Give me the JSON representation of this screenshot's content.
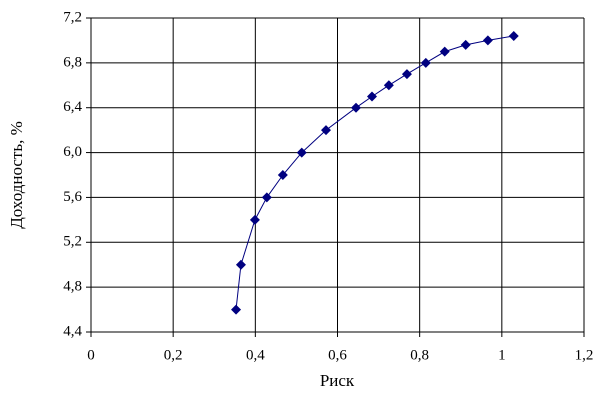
{
  "chart_data": {
    "type": "line",
    "xlabel": "Риск",
    "ylabel": "Доходность, %",
    "x": [
      0.353,
      0.365,
      0.399,
      0.428,
      0.467,
      0.513,
      0.572,
      0.645,
      0.684,
      0.725,
      0.769,
      0.815,
      0.861,
      0.912,
      0.966,
      1.029
    ],
    "values": [
      4.6,
      5.0,
      5.4,
      5.6,
      5.8,
      6.0,
      6.2,
      6.4,
      6.5,
      6.6,
      6.7,
      6.8,
      6.9,
      6.96,
      7.0,
      7.04
    ],
    "color": "#000080",
    "line_color": "#000080",
    "xlim": [
      0,
      1.2
    ],
    "xticks": [
      0,
      {
        "value": 0.2,
        "label": "0,2"
      },
      {
        "value": 0.4,
        "label": "0,4"
      },
      {
        "value": 0.6,
        "label": "0,6"
      },
      {
        "value": 0.8,
        "label": "0,8"
      },
      1,
      {
        "value": 1.2,
        "label": "1,2"
      }
    ],
    "ylim": [
      4.4,
      7.2
    ],
    "yticks": [
      {
        "value": 4.4,
        "label": "4,4"
      },
      {
        "value": 4.8,
        "label": "4,8"
      },
      {
        "value": 5.2,
        "label": "5,2"
      },
      {
        "value": 5.6,
        "label": "5,6"
      },
      {
        "value": 6.0,
        "label": "6,0"
      },
      {
        "value": 6.4,
        "label": "6,4"
      },
      {
        "value": 6.8,
        "label": "6,8"
      },
      {
        "value": 7.2,
        "label": "7,2"
      }
    ],
    "grid": true
  }
}
